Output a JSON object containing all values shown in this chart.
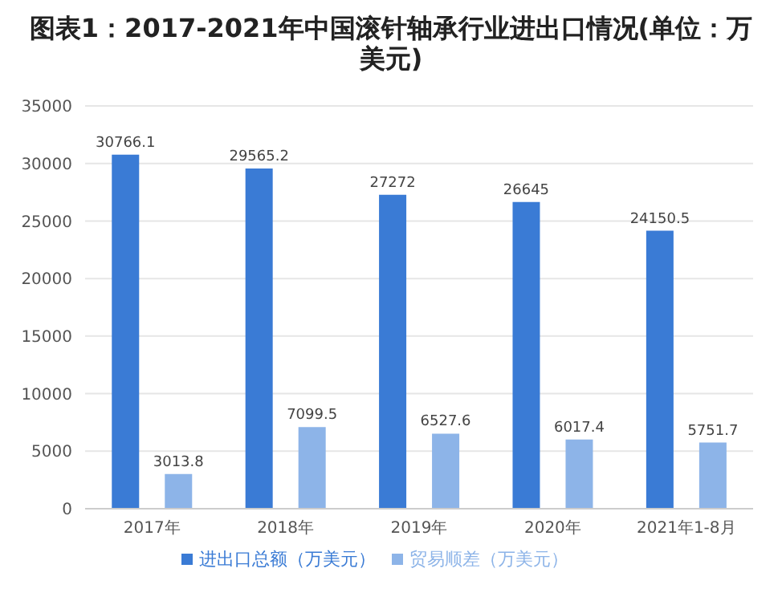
{
  "chart_data": {
    "type": "bar",
    "title": "图表1：2017-2021年中国滚针轴承行业进出口情况(单位：万美元)",
    "categories": [
      "2017年",
      "2018年",
      "2019年",
      "2020年",
      "2021年1-8月"
    ],
    "series": [
      {
        "name": "进出口总额（万美元）",
        "color": "#3a7bd5",
        "values": [
          30766.1,
          29565.2,
          27272,
          26645,
          24150.5
        ]
      },
      {
        "name": "贸易顺差（万美元）",
        "color": "#8db4e8",
        "values": [
          3013.8,
          7099.5,
          6527.6,
          6017.4,
          5751.7
        ]
      }
    ],
    "ylim": [
      0,
      35000
    ],
    "yticks": [
      0,
      5000,
      10000,
      15000,
      20000,
      25000,
      30000,
      35000
    ],
    "grid": "y",
    "legend": "bottom",
    "data_labels": true
  }
}
